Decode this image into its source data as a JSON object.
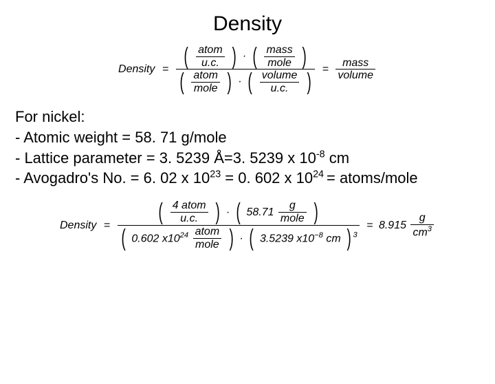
{
  "title": "Density",
  "body": {
    "intro": "For nickel:",
    "line1_pre": "- Atomic weight = ",
    "line1_val": "58. 71 g/mole",
    "line2_pre": "- Lattice parameter = ",
    "line2_val_a": "3. 5239 Å=3. 5239 x 10",
    "line2_exp": "-8",
    "line2_val_b": " cm",
    "line3_pre": "- Avogadro's No. = ",
    "line3_val_a": "6. 02 x 10",
    "line3_exp1": "23",
    "line3_mid": " = 0. 602 x 10",
    "line3_exp2": "24 ",
    "line3_val_b": "= atoms/mole"
  },
  "formula1": {
    "label": "Density",
    "atom": "atom",
    "uc": "u.c.",
    "mass": "mass",
    "mole": "mole",
    "volume": "volume"
  },
  "formula2": {
    "label": "Density",
    "four": "4",
    "atom": "atom",
    "uc": "u.c.",
    "aw": "58.71",
    "g": "g",
    "mole": "mole",
    "avog_a": "0.602",
    "avog_b": "x10",
    "avog_exp": "24",
    "lp_a": "3.5239",
    "lp_b": "x10",
    "lp_exp": "−8",
    "cm": "cm",
    "cube": "3",
    "result": "8.915",
    "result_unit_top": "g",
    "result_unit_bot": "cm",
    "result_unit_exp": "3"
  },
  "colors": {
    "bg": "#ffffff",
    "text": "#000000"
  }
}
